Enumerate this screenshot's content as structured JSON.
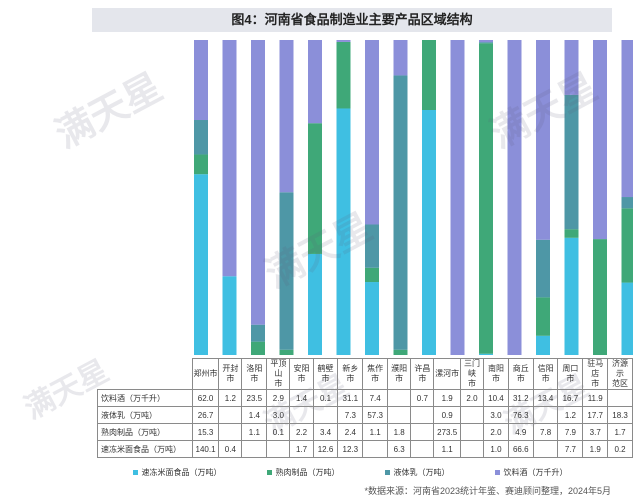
{
  "title": "图4：河南省食品制造业主要产品区域结构",
  "source": "*数据来源：河南省2023统计年鉴、赛迪顾问整理，2024年5月",
  "watermark": "满天星",
  "colors": {
    "速冻米面食品（万吨）": "#3fbfe2",
    "熟肉制品（万吨）": "#3fa878",
    "液体乳（万吨）": "#4e97a6",
    "饮料酒（万千升）": "#8b8fd9"
  },
  "chart_data": {
    "type": "bar",
    "stacked": true,
    "normalized": true,
    "ylim": [
      0,
      100
    ],
    "categories": [
      "郑州市",
      "开封市",
      "洛阳市",
      "平顶山市",
      "安阳市",
      "鹤壁市",
      "新乡市",
      "焦作市",
      "濮阳市",
      "许昌市",
      "漯河市",
      "三门峡市",
      "南阳市",
      "商丘市",
      "信阳市",
      "周口市",
      "驻马店市",
      "济源示范区"
    ],
    "category_labels": [
      "郑州市",
      "开封市",
      "洛阳市",
      "平顶山\n市",
      "安阳市",
      "鹤壁市",
      "新乡市",
      "焦作市",
      "濮阳市",
      "许昌市",
      "漯河市",
      "三门峡\n市",
      "南阳市",
      "商丘市",
      "信阳市",
      "周口市",
      "驻马店\n市",
      "济源示\n范区"
    ],
    "series": [
      {
        "name": "饮料酒（万千升）",
        "values": [
          62.0,
          1.2,
          23.5,
          2.9,
          1.4,
          0.1,
          31.1,
          7.4,
          null,
          0.7,
          1.9,
          2.0,
          10.4,
          31.2,
          13.4,
          16.7,
          11.9,
          null
        ]
      },
      {
        "name": "液体乳（万吨）",
        "values": [
          26.7,
          null,
          1.4,
          3.0,
          null,
          null,
          7.3,
          57.3,
          null,
          null,
          0.9,
          null,
          3.0,
          76.3,
          null,
          1.2,
          17.7,
          18.3
        ]
      },
      {
        "name": "熟肉制品（万吨）",
        "values": [
          15.3,
          null,
          1.1,
          0.1,
          2.2,
          3.4,
          2.4,
          1.1,
          1.8,
          null,
          273.5,
          null,
          2.0,
          4.9,
          7.8,
          7.9,
          3.7,
          1.7
        ]
      },
      {
        "name": "速冻米面食品（万吨）",
        "values": [
          140.1,
          0.4,
          null,
          null,
          1.7,
          12.6,
          12.3,
          null,
          6.3,
          null,
          1.1,
          null,
          1.0,
          66.6,
          null,
          7.7,
          1.9,
          0.2
        ]
      }
    ],
    "stack_order_bottom_to_top": [
      "速冻米面食品（万吨）",
      "熟肉制品（万吨）",
      "液体乳（万吨）",
      "饮料酒（万千升）"
    ],
    "legend_order": [
      "速冻米面食品（万吨）",
      "熟肉制品（万吨）",
      "液体乳（万吨）",
      "饮料酒（万千升）"
    ],
    "legend_position": "bottom"
  }
}
